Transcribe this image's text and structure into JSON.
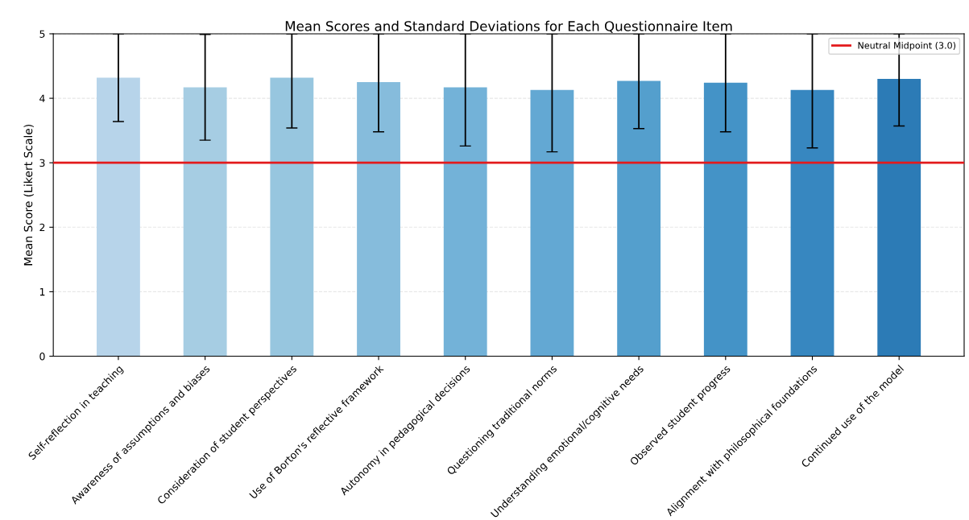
{
  "chart_data": {
    "type": "bar",
    "title": "Mean Scores and Standard Deviations for Each Questionnaire Item",
    "ylabel": "Mean Score (Likert Scale)",
    "categories": [
      "Self-reflection in teaching",
      "Awareness of assumptions and biases",
      "Consideration of student perspectives",
      "Use of Borton's reflective framework",
      "Autonomy in pedagogical decisions",
      "Questioning traditional norms",
      "Understanding emotional/cognitive needs",
      "Observed student progress",
      "Alignment with philosophical foundations",
      "Continued use of the model"
    ],
    "values": [
      4.32,
      4.17,
      4.32,
      4.25,
      4.17,
      4.13,
      4.27,
      4.24,
      4.13,
      4.3
    ],
    "errors": [
      0.68,
      0.82,
      [
        3.54,
        5
      ],
      [
        3.48,
        5
      ],
      [
        3.26,
        5
      ],
      [
        3.17,
        5
      ],
      [
        3.53,
        5
      ],
      [
        3.48,
        5
      ],
      [
        3.23,
        5
      ],
      [
        3.57,
        5
      ]
    ],
    "colors": [
      "#b7d4ea",
      "#a6cde3",
      "#97c6df",
      "#86bcdc",
      "#73b2d8",
      "#63a8d3",
      "#549fcd",
      "#4493c7",
      "#3787c0",
      "#2c7bb6"
    ],
    "ylim": [
      0,
      5
    ],
    "yticks": [
      0,
      1,
      2,
      3,
      4,
      5
    ],
    "ref_lines": [
      {
        "axis": "y",
        "value": 3.0,
        "label": "Neutral Midpoint (3.0)",
        "color": "#e31a1c"
      }
    ],
    "grid": "y",
    "legend": "top right"
  }
}
